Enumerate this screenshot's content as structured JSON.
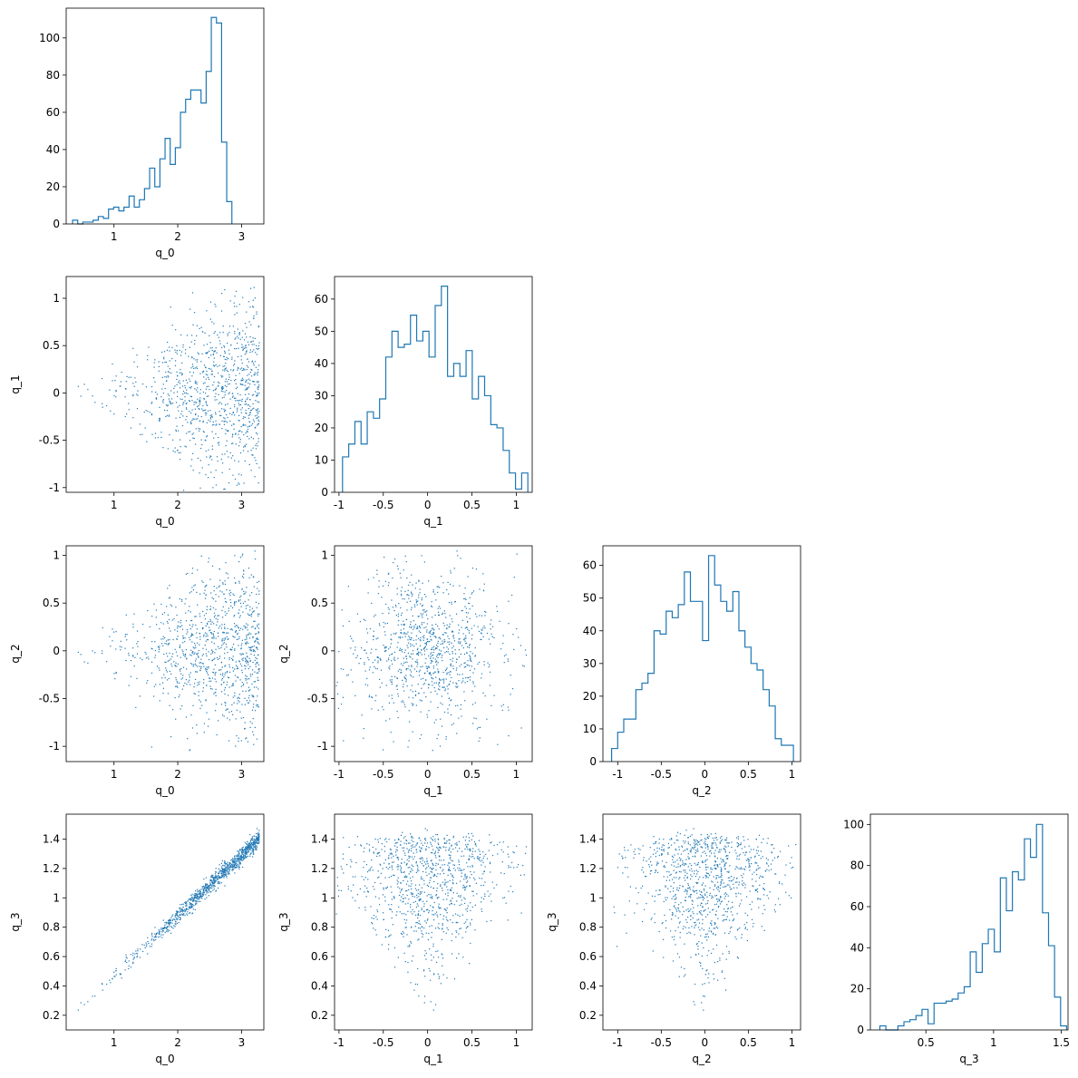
{
  "figure": {
    "series_color": "#1f77b4",
    "variables": [
      "q_0",
      "q_1",
      "q_2",
      "q_3"
    ]
  },
  "chart_data": [
    {
      "id": "hist-q0",
      "type": "histogram",
      "row": 0,
      "col": 0,
      "xlabel": "q_0",
      "ylabel": "",
      "xlim": [
        0.25,
        3.35
      ],
      "ylim": [
        0,
        116
      ],
      "xticks": [
        1,
        2,
        3
      ],
      "yticks": [
        0,
        20,
        40,
        60,
        80,
        100
      ],
      "bin_start": 0.35,
      "bin_width": 0.0806,
      "counts": [
        2,
        0,
        1,
        1,
        2,
        4,
        3,
        8,
        9,
        7,
        9,
        15,
        9,
        13,
        19,
        30,
        20,
        35,
        46,
        32,
        41,
        60,
        67,
        72,
        72,
        65,
        82,
        111,
        108,
        44,
        12
      ]
    },
    {
      "id": "scatter-q0-q1",
      "type": "scatter",
      "row": 1,
      "col": 0,
      "xlabel": "q_0",
      "ylabel": "q_1",
      "xlim": [
        0.25,
        3.35
      ],
      "ylim": [
        -1.05,
        1.23
      ],
      "xticks": [
        1,
        2,
        3
      ],
      "yticks": [
        -1.0,
        -0.5,
        0.0,
        0.5,
        1.0
      ]
    },
    {
      "id": "hist-q1",
      "type": "histogram",
      "row": 1,
      "col": 1,
      "xlabel": "q_1",
      "ylabel": "",
      "xlim": [
        -1.05,
        1.18
      ],
      "ylim": [
        0,
        67
      ],
      "xticks": [
        -1.0,
        -0.5,
        0.0,
        0.5,
        1.0
      ],
      "yticks": [
        0,
        10,
        20,
        30,
        40,
        50,
        60
      ],
      "bin_start": -0.96,
      "bin_width": 0.0697,
      "counts": [
        11,
        15,
        22,
        15,
        25,
        23,
        29,
        42,
        50,
        45,
        46,
        55,
        47,
        50,
        42,
        58,
        64,
        36,
        40,
        36,
        44,
        29,
        36,
        30,
        21,
        20,
        13,
        6,
        1,
        6
      ]
    },
    {
      "id": "scatter-q0-q2",
      "type": "scatter",
      "row": 2,
      "col": 0,
      "xlabel": "q_0",
      "ylabel": "q_2",
      "xlim": [
        0.25,
        3.35
      ],
      "ylim": [
        -1.16,
        1.1
      ],
      "xticks": [
        1,
        2,
        3
      ],
      "yticks": [
        -1.0,
        -0.5,
        0.0,
        0.5,
        1.0
      ]
    },
    {
      "id": "scatter-q1-q2",
      "type": "scatter",
      "row": 2,
      "col": 1,
      "xlabel": "q_1",
      "ylabel": "q_2",
      "xlim": [
        -1.05,
        1.18
      ],
      "ylim": [
        -1.16,
        1.1
      ],
      "xticks": [
        -1.0,
        -0.5,
        0.0,
        0.5,
        1.0
      ],
      "yticks": [
        -1.0,
        -0.5,
        0.0,
        0.5,
        1.0
      ]
    },
    {
      "id": "hist-q2",
      "type": "histogram",
      "row": 2,
      "col": 2,
      "xlabel": "q_2",
      "ylabel": "",
      "xlim": [
        -1.17,
        1.1
      ],
      "ylim": [
        0,
        66
      ],
      "xticks": [
        -1.0,
        -0.5,
        0.0,
        0.5,
        1.0
      ],
      "yticks": [
        0,
        10,
        20,
        30,
        40,
        50,
        60
      ],
      "bin_start": -1.07,
      "bin_width": 0.0696,
      "counts": [
        4,
        9,
        13,
        13,
        22,
        24,
        27,
        40,
        39,
        46,
        44,
        48,
        58,
        49,
        49,
        37,
        63,
        54,
        49,
        46,
        52,
        40,
        35,
        30,
        28,
        22,
        17,
        7,
        5,
        5
      ]
    },
    {
      "id": "scatter-q0-q3",
      "type": "scatter",
      "row": 3,
      "col": 0,
      "xlabel": "q_0",
      "ylabel": "q_3",
      "xlim": [
        0.25,
        3.35
      ],
      "ylim": [
        0.1,
        1.57
      ],
      "xticks": [
        1,
        2,
        3
      ],
      "yticks": [
        0.2,
        0.4,
        0.6,
        0.8,
        1.0,
        1.2,
        1.4
      ]
    },
    {
      "id": "scatter-q1-q3",
      "type": "scatter",
      "row": 3,
      "col": 1,
      "xlabel": "q_1",
      "ylabel": "q_3",
      "xlim": [
        -1.05,
        1.18
      ],
      "ylim": [
        0.1,
        1.57
      ],
      "xticks": [
        -1.0,
        -0.5,
        0.0,
        0.5,
        1.0
      ],
      "yticks": [
        0.2,
        0.4,
        0.6,
        0.8,
        1.0,
        1.2,
        1.4
      ]
    },
    {
      "id": "scatter-q2-q3",
      "type": "scatter",
      "row": 3,
      "col": 2,
      "xlabel": "q_2",
      "ylabel": "q_3",
      "xlim": [
        -1.17,
        1.1
      ],
      "ylim": [
        0.1,
        1.57
      ],
      "xticks": [
        -1.0,
        -0.5,
        0.0,
        0.5,
        1.0
      ],
      "yticks": [
        0.2,
        0.4,
        0.6,
        0.8,
        1.0,
        1.2,
        1.4
      ]
    },
    {
      "id": "hist-q3",
      "type": "histogram",
      "row": 3,
      "col": 3,
      "xlabel": "q_3",
      "ylabel": "",
      "xlim": [
        0.09,
        1.55
      ],
      "ylim": [
        0,
        105
      ],
      "xticks": [
        0.5,
        1.0,
        1.5
      ],
      "yticks": [
        0,
        20,
        40,
        60,
        80,
        100
      ],
      "bin_start": 0.16,
      "bin_width": 0.0445,
      "counts": [
        2,
        0,
        0,
        2,
        4,
        5,
        7,
        10,
        3,
        13,
        13,
        14,
        15,
        18,
        21,
        38,
        28,
        42,
        49,
        38,
        74,
        58,
        77,
        73,
        93,
        84,
        100,
        57,
        41,
        16,
        2
      ]
    }
  ]
}
